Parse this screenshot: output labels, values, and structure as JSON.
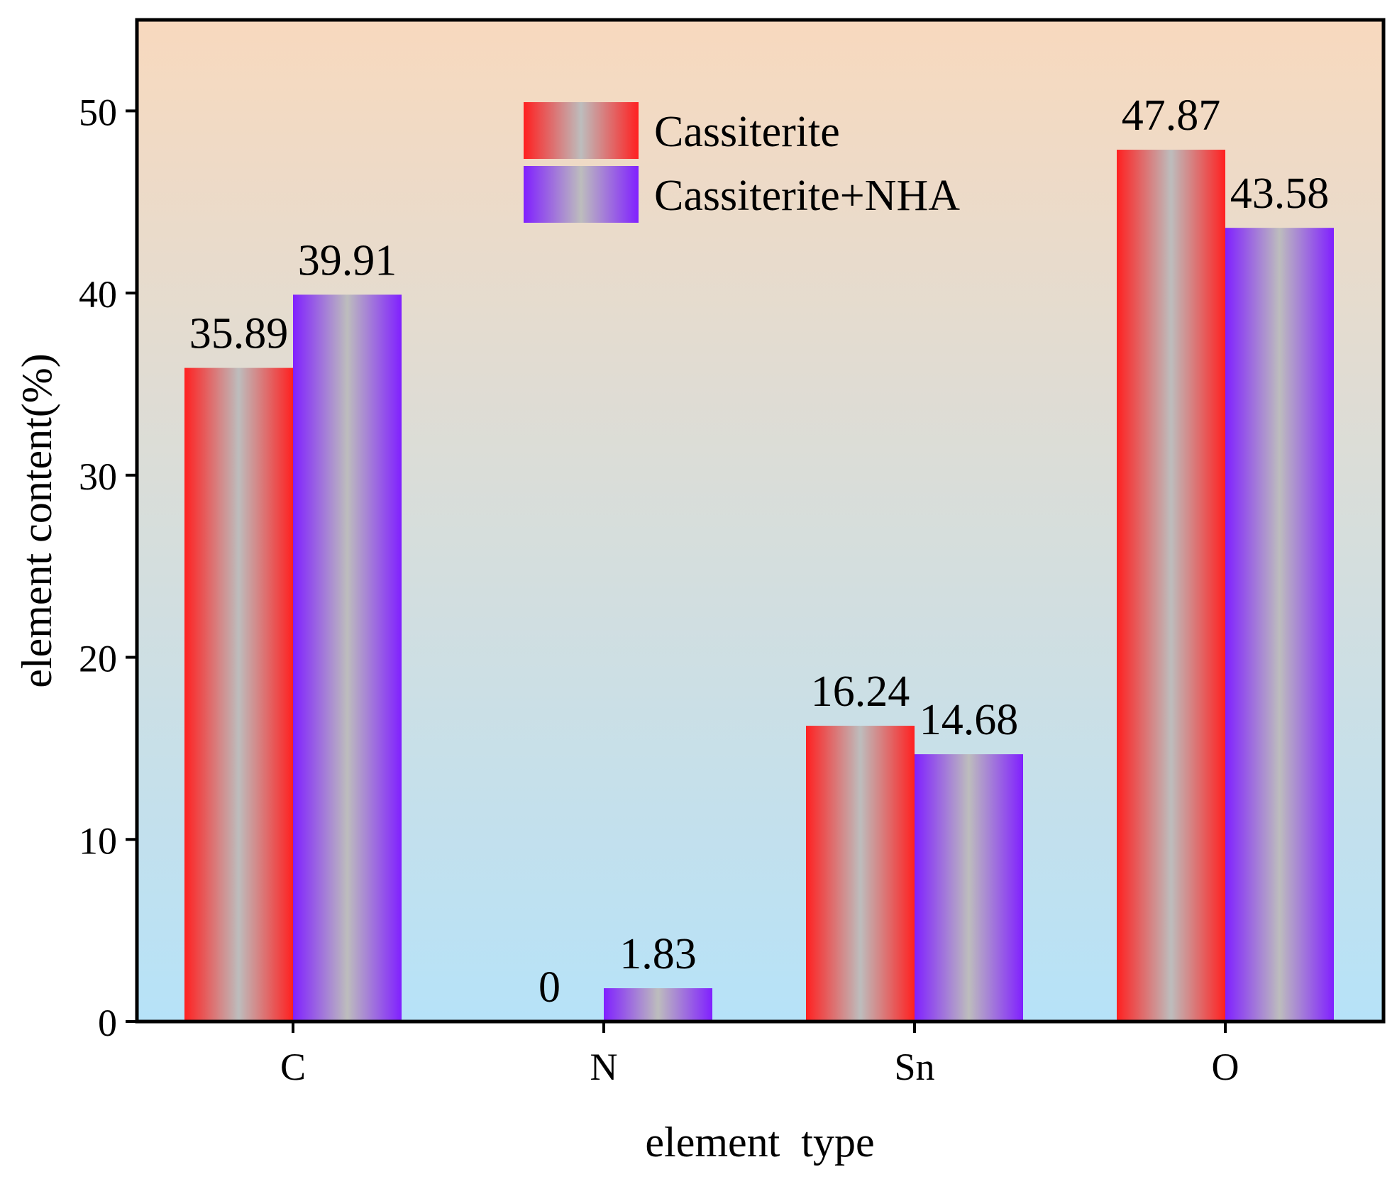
{
  "chart_data": {
    "type": "bar",
    "title": "",
    "xlabel": "element  type",
    "ylabel": "element content(%)",
    "categories": [
      "C",
      "N",
      "Sn",
      "O"
    ],
    "series": [
      {
        "name": "Cassiterite",
        "values": [
          35.89,
          0,
          16.24,
          47.87
        ],
        "labels": [
          "35.89",
          "0",
          "16.24",
          "47.87"
        ]
      },
      {
        "name": "Cassiterite+NHA",
        "values": [
          39.91,
          1.83,
          14.68,
          43.58
        ],
        "labels": [
          "39.91",
          "1.83",
          "14.68",
          "43.58"
        ]
      }
    ],
    "ylim": [
      0,
      55
    ],
    "yticks": [
      0,
      10,
      20,
      30,
      40,
      50
    ],
    "ytick_labels": [
      "0",
      "10",
      "20",
      "30",
      "40",
      "50"
    ],
    "grid": false,
    "legend_position": "top-center"
  },
  "colors": {
    "background_top": "#F8D9BE",
    "background_bottom": "#B6E2F8",
    "series_0_edge": "#FF2020",
    "series_1_edge": "#8020FF",
    "bar_center": "#BDBDBD"
  }
}
